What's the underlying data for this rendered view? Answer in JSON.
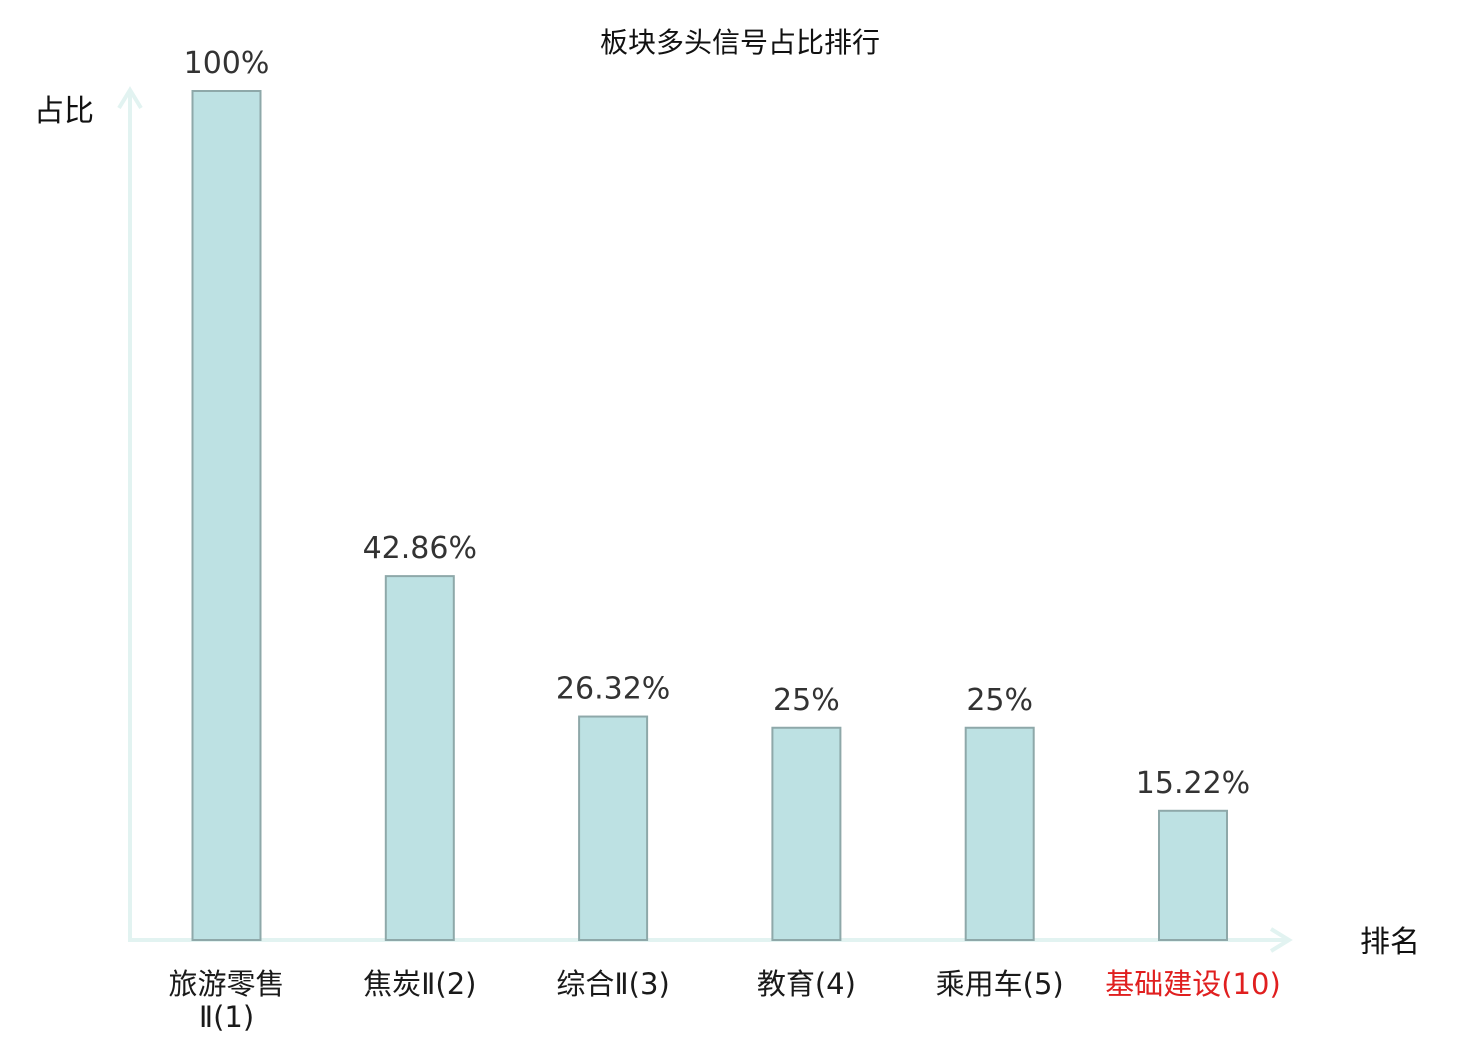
{
  "chart_data": {
    "type": "bar",
    "title": "板块多头信号占比排行",
    "xlabel": "排名",
    "ylabel": "占比",
    "ylim": [
      0,
      100
    ],
    "grid": false,
    "categories": [
      "旅游零售Ⅱ(1)",
      "焦炭Ⅱ(2)",
      "综合Ⅱ(3)",
      "教育(4)",
      "乘用车(5)",
      "基础建设(10)"
    ],
    "category_lines": [
      [
        "旅游零售",
        "Ⅱ(1)"
      ],
      [
        "焦炭Ⅱ(2)"
      ],
      [
        "综合Ⅱ(3)"
      ],
      [
        "教育(4)"
      ],
      [
        "乘用车(5)"
      ],
      [
        "基础建设(10)"
      ]
    ],
    "values": [
      100,
      42.86,
      26.32,
      25,
      25,
      15.22
    ],
    "value_labels": [
      "100%",
      "42.86%",
      "26.32%",
      "25%",
      "25%",
      "15.22%"
    ],
    "highlight_category": "基础建设(10)",
    "colors": {
      "bar_fill": "#bde1e3",
      "bar_stroke": "#8ea8a9",
      "axis": "#e2f3f1",
      "highlight_text": "#e01f1f",
      "label_text": "#333333"
    }
  }
}
